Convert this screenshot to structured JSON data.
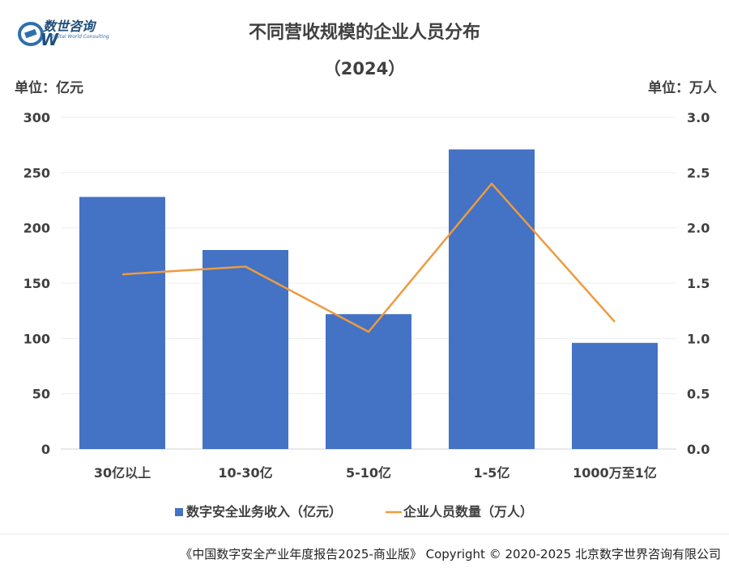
{
  "logo": {
    "brand_cn": "数世咨询",
    "brand_en": "Digital World Consulting",
    "mark_letter": "W"
  },
  "chart_data": {
    "type": "bar",
    "title": "不同营收规模的企业人员分布",
    "subtitle": "（2024）",
    "left_unit": "单位：亿元",
    "right_unit": "单位：万人",
    "categories": [
      "30亿以上",
      "10-30亿",
      "5-10亿",
      "1-5亿",
      "1000万至1亿"
    ],
    "series": [
      {
        "name": "数字安全业务收入（亿元）",
        "type": "bar",
        "axis": "left",
        "color": "#4472C4",
        "values": [
          228,
          180,
          122,
          271,
          96
        ]
      },
      {
        "name": "企业人员数量（万人）",
        "type": "line",
        "axis": "right",
        "color": "#ED9B40",
        "values": [
          1.58,
          1.65,
          1.06,
          2.4,
          1.15
        ]
      }
    ],
    "y_left": {
      "min": 0,
      "max": 300,
      "ticks": [
        "0",
        "50",
        "100",
        "150",
        "200",
        "250",
        "300"
      ]
    },
    "y_right": {
      "min": 0,
      "max": 3.0,
      "ticks": [
        "0.0",
        "0.5",
        "1.0",
        "1.5",
        "2.0",
        "2.5",
        "3.0"
      ]
    },
    "grid": true,
    "legend_position": "bottom"
  },
  "footer": {
    "text": "《中国数字安全产业年度报告2025-商业版》 Copyright © 2020-2025 北京数字世界咨询有限公司"
  }
}
